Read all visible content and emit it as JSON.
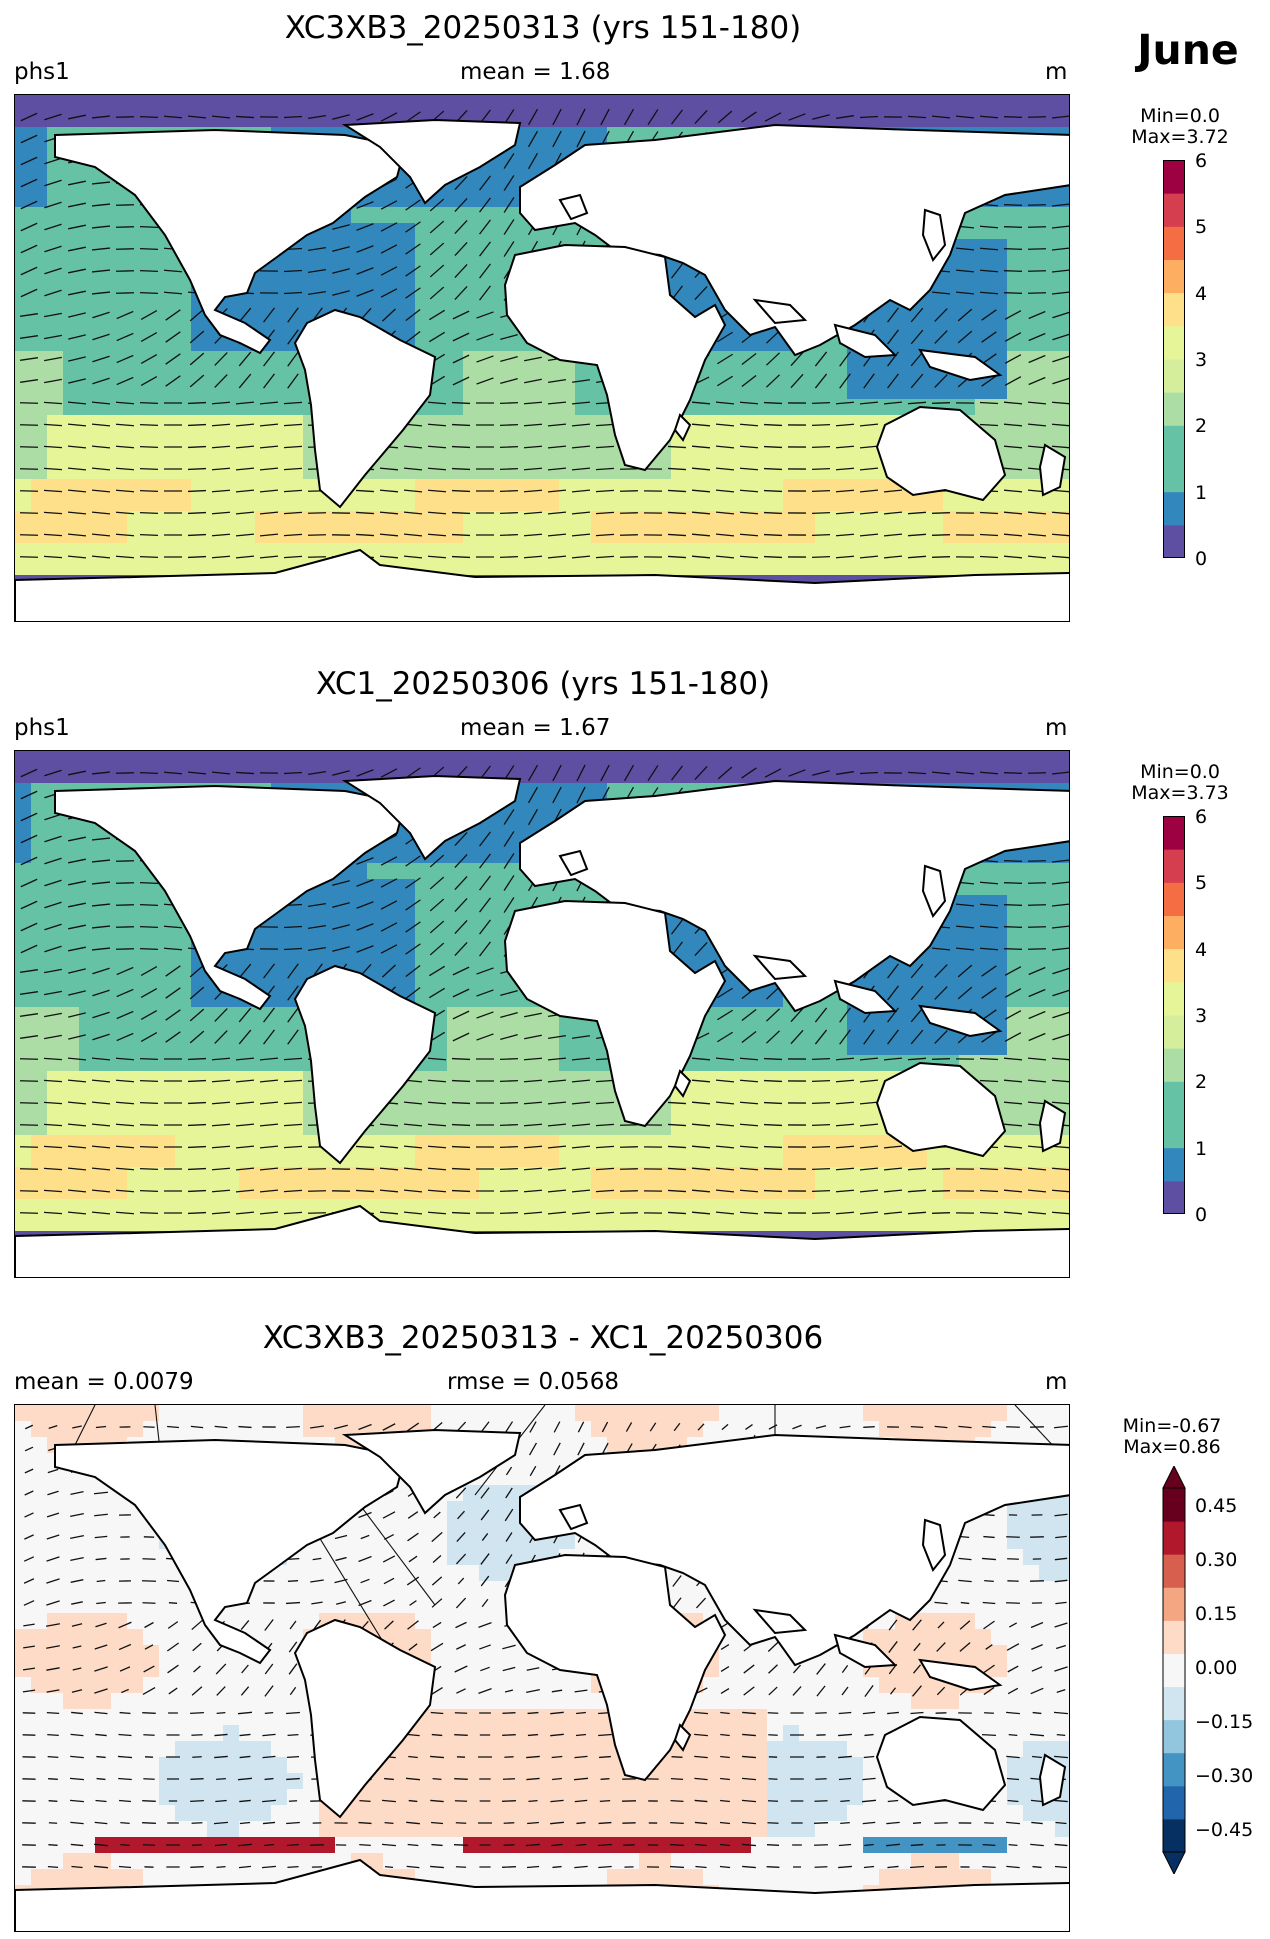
{
  "month": "June",
  "panels": [
    {
      "title": "XC3XB3_20250313 (yrs 151-180)",
      "left": "phs1",
      "center": "mean = 1.68",
      "right": "m",
      "min_label": "Min=0.0",
      "max_label": "Max=3.72",
      "colorbar_ticks": [
        "6",
        "5",
        "4",
        "3",
        "2",
        "1",
        "0"
      ]
    },
    {
      "title": "XC1_20250306 (yrs 151-180)",
      "left": "phs1",
      "center": "mean = 1.67",
      "right": "m",
      "min_label": "Min=0.0",
      "max_label": "Max=3.73",
      "colorbar_ticks": [
        "6",
        "5",
        "4",
        "3",
        "2",
        "1",
        "0"
      ]
    },
    {
      "title": "XC3XB3_20250313 - XC1_20250306",
      "left": "mean = 0.0079",
      "center": "rmse = 0.0568",
      "right": "m",
      "min_label": "Min=-0.67",
      "max_label": "Max=0.86",
      "colorbar_ticks": [
        "0.45",
        "0.30",
        "0.15",
        "0.00",
        "−0.15",
        "−0.30",
        "−0.45"
      ]
    }
  ],
  "colors": {
    "seq_palette": [
      "#5e4fa2",
      "#3288bd",
      "#66c2a5",
      "#abdda4",
      "#e6f598",
      "#fee08b",
      "#fdae61",
      "#f46d43",
      "#d53e4f",
      "#9e0142"
    ],
    "div_palette": [
      "#053061",
      "#2166ac",
      "#4393c3",
      "#92c5de",
      "#d1e5f0",
      "#f7f7f7",
      "#fddbc7",
      "#f4a582",
      "#d6604d",
      "#b2182b",
      "#67001f"
    ],
    "land": "#ffffff",
    "sea_ice": "#5e4fa2"
  }
}
